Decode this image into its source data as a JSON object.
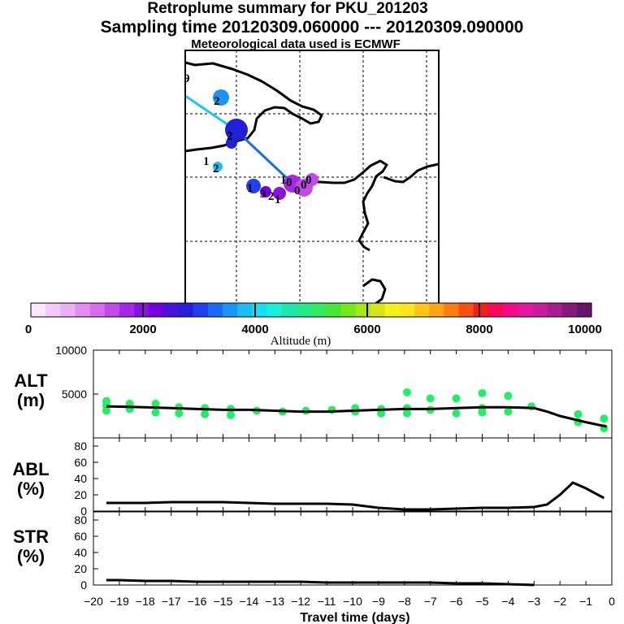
{
  "title_line1": "Retroplume summary for PKU_201203",
  "title_line2": "Sampling time   20120309.060000 --- 20120309.090000",
  "title_line3": "Meteorological data used is ECMWF",
  "map": {
    "point_labels": [
      "9",
      "2",
      "2",
      "1",
      "2",
      "1",
      "3",
      "2",
      "1",
      "1",
      "0",
      "0",
      "0",
      "0"
    ]
  },
  "colorbar": {
    "ticks": [
      "0",
      "2000",
      "4000",
      "6000",
      "8000",
      "10000"
    ],
    "label": "Altitude (m)",
    "colors": [
      "#f9e6fb",
      "#f2ccf7",
      "#eab0f3",
      "#e28ef0",
      "#d96bee",
      "#c24ae8",
      "#a528e4",
      "#8a11e0",
      "#7400dd",
      "#4a14d8",
      "#2b1de0",
      "#1f3ff0",
      "#1b6cf2",
      "#1b96f4",
      "#1dbef5",
      "#16dff0",
      "#16f0d4",
      "#1ee8ad",
      "#28e98a",
      "#34ea5e",
      "#49e635",
      "#76e61f",
      "#a6e51b",
      "#d6e61c",
      "#f4f21c",
      "#fbe51b",
      "#fcc518",
      "#fca416",
      "#fb7f15",
      "#fa4f15",
      "#f81b1b",
      "#f7095c",
      "#f20c87",
      "#e01aa0",
      "#c81e9d",
      "#a81d8f",
      "#851a7c",
      "#641769"
    ]
  },
  "panels": {
    "alt": {
      "label_line1": "ALT",
      "label_line2": "(m)"
    },
    "abl": {
      "label_line1": "ABL",
      "label_line2": "(%)"
    },
    "str": {
      "label_line1": "STR",
      "label_line2": "(%)"
    }
  },
  "xaxis": {
    "label": "Travel time (days)"
  },
  "chart_data": [
    {
      "type": "line",
      "name": "ALT",
      "title": "",
      "ylabel": "ALT (m)",
      "xlabel": "Travel time (days)",
      "xlim": [
        -20,
        0
      ],
      "ylim": [
        0,
        10000
      ],
      "yticks": [
        10000,
        5000
      ],
      "xticks": [
        -20,
        -19,
        -18,
        -17,
        -16,
        -15,
        -14,
        -13,
        -12,
        -11,
        -10,
        -9,
        -8,
        -7,
        -6,
        -5,
        -4,
        -3,
        -2,
        -1,
        0
      ],
      "x": [
        -19.5,
        -18,
        -17,
        -16,
        -15,
        -14,
        -13,
        -12,
        -11,
        -10,
        -9,
        -8,
        -7,
        -6,
        -5,
        -4,
        -3,
        -2.5,
        -2,
        -1,
        -0.2
      ],
      "values": [
        3600,
        3500,
        3400,
        3300,
        3200,
        3200,
        3100,
        3000,
        3000,
        3100,
        3200,
        3300,
        3300,
        3400,
        3500,
        3500,
        3400,
        3000,
        2500,
        1800,
        1300
      ],
      "cluster_points": {
        "x": [
          -19.5,
          -19.5,
          -19.5,
          -18.6,
          -18.6,
          -17.6,
          -17.6,
          -16.7,
          -16.7,
          -15.7,
          -15.7,
          -14.7,
          -14.7,
          -13.7,
          -12.7,
          -11.8,
          -10.8,
          -9.9,
          -9.9,
          -8.9,
          -8.9,
          -7.9,
          -7.9,
          -7.9,
          -7.0,
          -7.0,
          -6.0,
          -6.0,
          -5.0,
          -5.0,
          -5.0,
          -4.0,
          -4.0,
          -3.1,
          -1.3,
          -1.3,
          -0.3,
          -0.3
        ],
        "y": [
          4200,
          3700,
          3100,
          3900,
          3300,
          3900,
          2900,
          3500,
          2800,
          3400,
          2700,
          3300,
          2600,
          3100,
          3000,
          3100,
          3200,
          3400,
          3000,
          3300,
          2800,
          5200,
          3400,
          2800,
          4500,
          3200,
          4500,
          2800,
          5100,
          3400,
          2900,
          4800,
          3000,
          3600,
          2700,
          1800,
          2200,
          1100
        ]
      }
    },
    {
      "type": "line",
      "name": "ABL",
      "ylabel": "ABL (%)",
      "xlim": [
        -20,
        0
      ],
      "ylim": [
        0,
        90
      ],
      "yticks": [
        80,
        60,
        40,
        20,
        0
      ],
      "x": [
        -19.5,
        -18,
        -17,
        -16,
        -15,
        -14,
        -13,
        -12,
        -11,
        -10,
        -9,
        -8,
        -7,
        -6,
        -5,
        -4,
        -3,
        -2.5,
        -2,
        -1.5,
        -1,
        -0.3
      ],
      "values": [
        10,
        10,
        11,
        11,
        11,
        10,
        9,
        9,
        9,
        8,
        4,
        2,
        2,
        3,
        4,
        4,
        5,
        8,
        20,
        35,
        28,
        16
      ]
    },
    {
      "type": "line",
      "name": "STR",
      "ylabel": "STR (%)",
      "xlim": [
        -20,
        0
      ],
      "ylim": [
        0,
        90
      ],
      "yticks": [
        80,
        60,
        40,
        20,
        0
      ],
      "x": [
        -19.5,
        -19,
        -18,
        -17,
        -16,
        -15,
        -14,
        -13,
        -12,
        -11,
        -10,
        -9,
        -8,
        -7,
        -6,
        -5,
        -4,
        -3
      ],
      "values": [
        6,
        6,
        5,
        5,
        4,
        4,
        4,
        4,
        4,
        3,
        3,
        3,
        3,
        3,
        2,
        2,
        1,
        0
      ]
    }
  ]
}
